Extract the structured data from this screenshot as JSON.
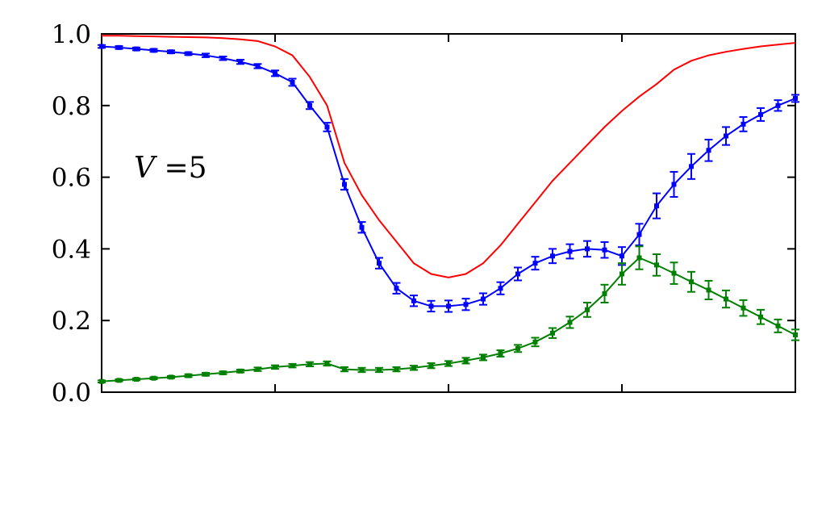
{
  "chart_data": {
    "type": "line",
    "title": "",
    "xlabel": "",
    "ylabel": "",
    "xlim": [
      0,
      40
    ],
    "ylim": [
      0.0,
      1.0
    ],
    "x_ticks": [
      10,
      20,
      30
    ],
    "y_ticks": [
      0.0,
      0.2,
      0.4,
      0.6,
      0.8,
      1.0
    ],
    "y_tick_labels": [
      "0.0",
      "0.2",
      "0.4",
      "0.6",
      "0.8",
      "1.0"
    ],
    "grid": false,
    "legend": "none",
    "annotation": {
      "var": "V",
      "rest": " =5"
    },
    "x": [
      0,
      1,
      2,
      3,
      4,
      5,
      6,
      7,
      8,
      9,
      10,
      11,
      12,
      13,
      14,
      15,
      16,
      17,
      18,
      19,
      20,
      21,
      22,
      23,
      24,
      25,
      26,
      27,
      28,
      29,
      30,
      31,
      32,
      33,
      34,
      35,
      36,
      37,
      38,
      39,
      40
    ],
    "series": [
      {
        "color": "#ff0000",
        "markers": false,
        "values": [
          0.995,
          0.995,
          0.994,
          0.993,
          0.992,
          0.991,
          0.99,
          0.988,
          0.985,
          0.98,
          0.965,
          0.94,
          0.88,
          0.8,
          0.64,
          0.55,
          0.48,
          0.42,
          0.36,
          0.33,
          0.32,
          0.33,
          0.36,
          0.41,
          0.47,
          0.53,
          0.59,
          0.64,
          0.69,
          0.74,
          0.785,
          0.825,
          0.86,
          0.9,
          0.925,
          0.94,
          0.95,
          0.958,
          0.965,
          0.97,
          0.975
        ]
      },
      {
        "color": "#0000ff",
        "markers": true,
        "values": [
          0.965,
          0.962,
          0.958,
          0.954,
          0.95,
          0.945,
          0.94,
          0.932,
          0.922,
          0.91,
          0.89,
          0.865,
          0.8,
          0.74,
          0.58,
          0.46,
          0.36,
          0.29,
          0.255,
          0.24,
          0.24,
          0.245,
          0.26,
          0.29,
          0.33,
          0.36,
          0.38,
          0.393,
          0.4,
          0.397,
          0.38,
          0.44,
          0.52,
          0.58,
          0.63,
          0.675,
          0.715,
          0.748,
          0.775,
          0.8,
          0.82
        ],
        "errors": [
          0.004,
          0.004,
          0.004,
          0.004,
          0.004,
          0.004,
          0.005,
          0.005,
          0.006,
          0.006,
          0.008,
          0.01,
          0.01,
          0.012,
          0.015,
          0.015,
          0.015,
          0.015,
          0.015,
          0.015,
          0.016,
          0.016,
          0.016,
          0.017,
          0.018,
          0.018,
          0.02,
          0.02,
          0.022,
          0.022,
          0.025,
          0.03,
          0.035,
          0.035,
          0.035,
          0.03,
          0.025,
          0.02,
          0.018,
          0.015,
          0.01
        ]
      },
      {
        "color": "#008000",
        "markers": true,
        "values": [
          0.03,
          0.033,
          0.036,
          0.039,
          0.042,
          0.046,
          0.05,
          0.054,
          0.059,
          0.064,
          0.07,
          0.074,
          0.078,
          0.08,
          0.064,
          0.062,
          0.062,
          0.064,
          0.068,
          0.074,
          0.08,
          0.088,
          0.097,
          0.108,
          0.122,
          0.14,
          0.165,
          0.195,
          0.23,
          0.275,
          0.33,
          0.375,
          0.355,
          0.332,
          0.308,
          0.285,
          0.26,
          0.235,
          0.21,
          0.185,
          0.16
        ],
        "errors": [
          0.003,
          0.003,
          0.003,
          0.003,
          0.003,
          0.004,
          0.004,
          0.004,
          0.004,
          0.005,
          0.005,
          0.005,
          0.006,
          0.006,
          0.006,
          0.006,
          0.006,
          0.006,
          0.006,
          0.007,
          0.007,
          0.008,
          0.008,
          0.009,
          0.01,
          0.012,
          0.014,
          0.016,
          0.02,
          0.025,
          0.03,
          0.032,
          0.03,
          0.03,
          0.028,
          0.026,
          0.024,
          0.022,
          0.02,
          0.018,
          0.015
        ]
      }
    ]
  }
}
